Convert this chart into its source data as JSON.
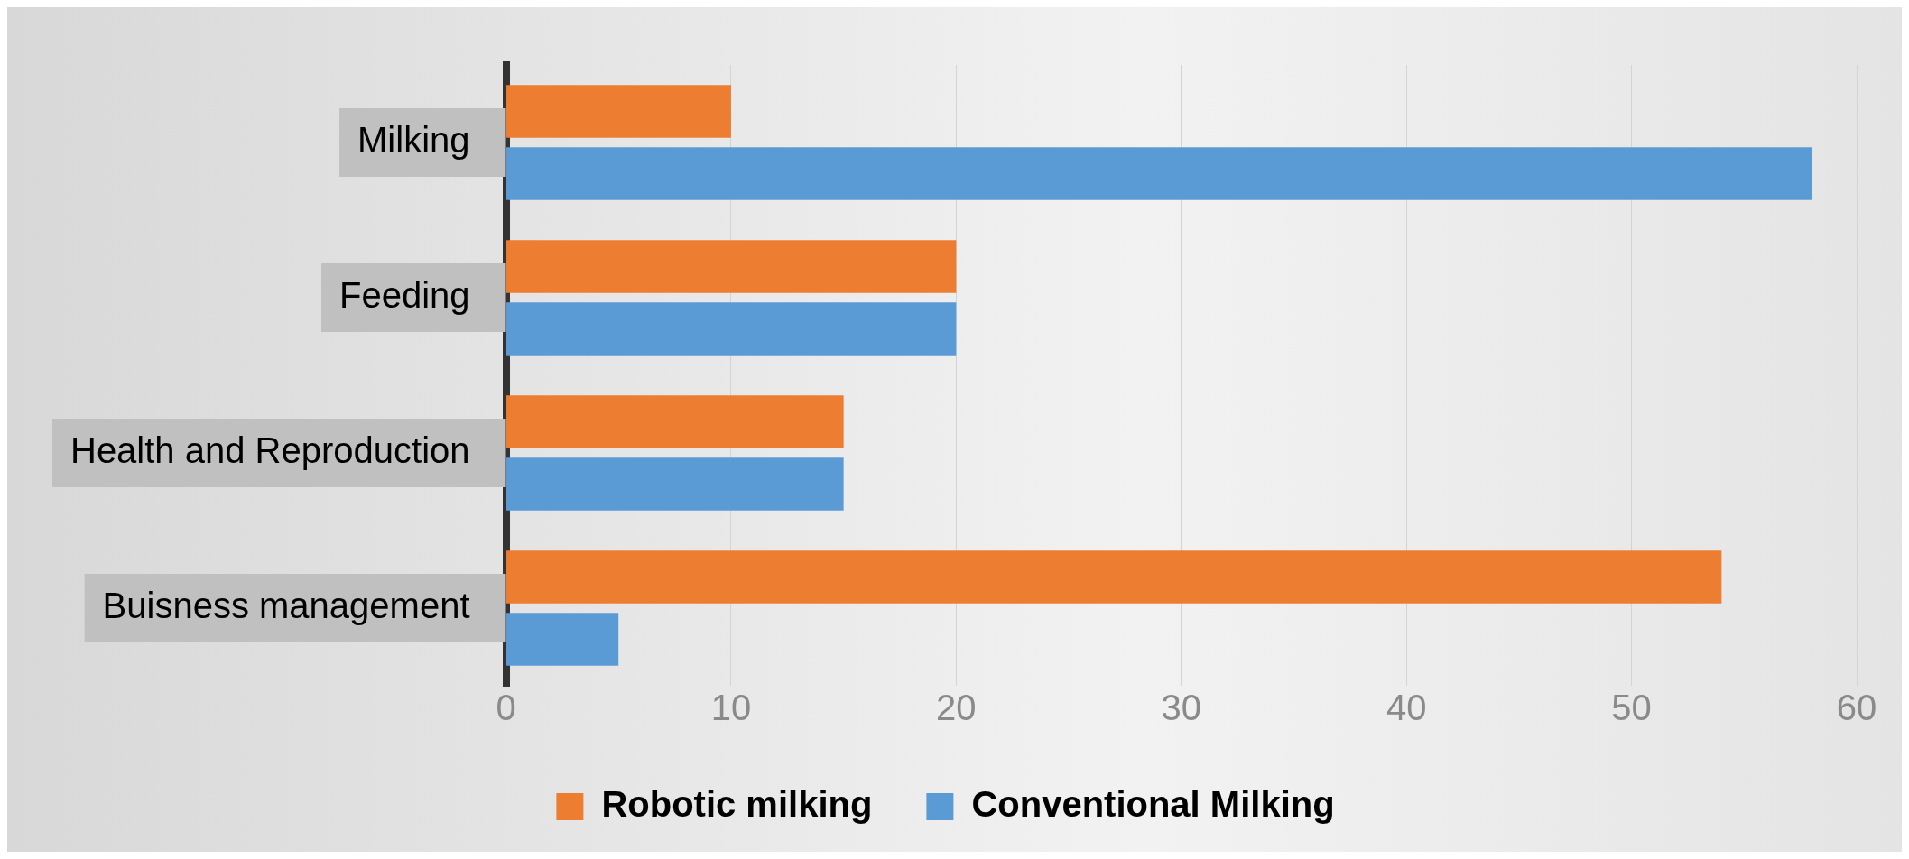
{
  "chart_data": {
    "type": "bar",
    "orientation": "horizontal",
    "categories": [
      "Milking",
      "Feeding",
      "Health and Reproduction",
      "Buisness management"
    ],
    "series": [
      {
        "name": "Robotic milking",
        "color": "#ed7d31",
        "values": [
          10,
          20,
          15,
          54
        ]
      },
      {
        "name": "Conventional Milking",
        "color": "#5b9bd5",
        "values": [
          58,
          20,
          15,
          5
        ]
      }
    ],
    "xlim": [
      0,
      60
    ],
    "xticks": [
      0,
      10,
      20,
      30,
      40,
      50,
      60
    ],
    "grid": "x",
    "legend": "bottom"
  }
}
